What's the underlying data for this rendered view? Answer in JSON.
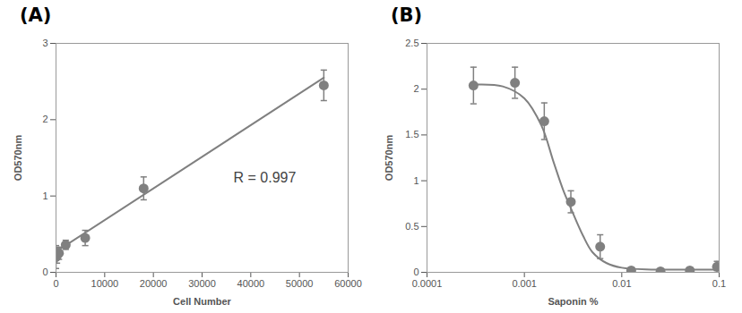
{
  "chart_data": [
    {
      "type": "scatter",
      "title": "(A)",
      "x_label": "Cell Number",
      "y_label": "OD570nm",
      "xlim": [
        0,
        60000
      ],
      "xticks": [
        0,
        10000,
        20000,
        30000,
        40000,
        50000,
        60000
      ],
      "ylim": [
        0,
        3
      ],
      "yticks": [
        0,
        1,
        2,
        3
      ],
      "grid": false,
      "annotations": [
        "R = 0.997"
      ],
      "series": [
        {
          "type": "scatter",
          "marker": "circle",
          "color": "#808080",
          "x": [
            0,
            200,
            600,
            2000,
            6000,
            18000,
            55000
          ],
          "values": [
            0.2,
            0.22,
            0.25,
            0.36,
            0.45,
            1.1,
            2.45
          ],
          "errors": [
            0.15,
            0.1,
            0.08,
            0.06,
            0.1,
            0.15,
            0.2
          ]
        },
        {
          "type": "line",
          "line_style": "solid",
          "color": "#808080",
          "x": [
            0,
            55000
          ],
          "values": [
            0.27,
            2.55
          ]
        }
      ]
    },
    {
      "type": "scatter",
      "title": "(B)",
      "x_label": "Saponin %",
      "y_label": "OD570nm",
      "log": "x",
      "xlim": [
        0.0001,
        0.1
      ],
      "xticks": [
        0.0001,
        0.001,
        0.01,
        0.1
      ],
      "ylim": [
        0,
        2.5
      ],
      "yticks": [
        0,
        0.5,
        1,
        1.5,
        2,
        2.5
      ],
      "grid": false,
      "series": [
        {
          "type": "scatter",
          "marker": "circle",
          "color": "#808080",
          "x": [
            0.0003,
            0.0008,
            0.0016,
            0.003,
            0.006,
            0.0125,
            0.025,
            0.05,
            0.095
          ],
          "values": [
            2.04,
            2.07,
            1.65,
            0.77,
            0.28,
            0.02,
            0.01,
            0.02,
            0.06
          ],
          "errors": [
            0.2,
            0.17,
            0.2,
            0.12,
            0.13,
            0.03,
            0.02,
            0.03,
            0.06
          ]
        },
        {
          "type": "line",
          "line_style": "solid",
          "color": "#808080",
          "x": [
            0.0003,
            0.0006,
            0.001,
            0.0015,
            0.002,
            0.0025,
            0.003,
            0.004,
            0.005,
            0.007,
            0.01,
            0.02,
            0.05,
            0.1
          ],
          "values": [
            2.05,
            2.03,
            1.9,
            1.6,
            1.2,
            0.9,
            0.7,
            0.4,
            0.22,
            0.1,
            0.05,
            0.03,
            0.03,
            0.03
          ]
        }
      ]
    }
  ]
}
